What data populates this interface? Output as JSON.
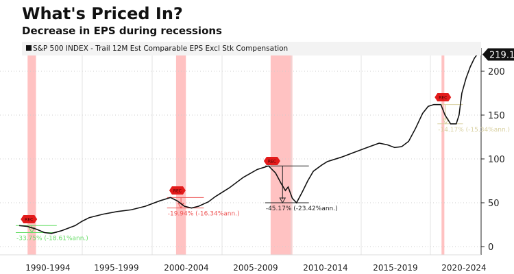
{
  "chart_data": {
    "type": "line",
    "title": "What's Priced In?",
    "subtitle": "Decrease in EPS during recessions",
    "series": [
      {
        "name": "S&P 500 INDEX - Trail 12M Est Comparable EPS Excl Stk Compensation",
        "color": "#111111",
        "points": [
          [
            1990.0,
            24
          ],
          [
            1990.6,
            23
          ],
          [
            1991.2,
            20
          ],
          [
            1991.8,
            16
          ],
          [
            1992.3,
            15
          ],
          [
            1993,
            18
          ],
          [
            1994,
            24
          ],
          [
            1994.5,
            29
          ],
          [
            1995,
            33
          ],
          [
            1996,
            37
          ],
          [
            1997,
            40
          ],
          [
            1998,
            42
          ],
          [
            1999,
            46
          ],
          [
            2000,
            52
          ],
          [
            2000.8,
            56
          ],
          [
            2001.3,
            52
          ],
          [
            2001.8,
            46
          ],
          [
            2002.3,
            44
          ],
          [
            2002.8,
            46
          ],
          [
            2003.5,
            51
          ],
          [
            2004,
            57
          ],
          [
            2005,
            67
          ],
          [
            2006,
            79
          ],
          [
            2007,
            88
          ],
          [
            2007.8,
            92
          ],
          [
            2008.3,
            84
          ],
          [
            2008.7,
            72
          ],
          [
            2009,
            64
          ],
          [
            2009.2,
            68
          ],
          [
            2009.5,
            55
          ],
          [
            2009.8,
            50
          ],
          [
            2010.2,
            62
          ],
          [
            2010.6,
            75
          ],
          [
            2011,
            86
          ],
          [
            2011.6,
            93
          ],
          [
            2012,
            97
          ],
          [
            2013,
            102
          ],
          [
            2014,
            108
          ],
          [
            2015,
            114
          ],
          [
            2015.7,
            118
          ],
          [
            2016.3,
            116
          ],
          [
            2016.8,
            113
          ],
          [
            2017.3,
            114
          ],
          [
            2017.8,
            120
          ],
          [
            2018.3,
            135
          ],
          [
            2018.8,
            152
          ],
          [
            2019.2,
            160
          ],
          [
            2019.6,
            162
          ],
          [
            2020.1,
            162
          ],
          [
            2020.4,
            150
          ],
          [
            2020.8,
            140
          ],
          [
            2021.2,
            140
          ],
          [
            2021.4,
            150
          ],
          [
            2021.6,
            175
          ],
          [
            2021.9,
            192
          ],
          [
            2022.2,
            205
          ],
          [
            2022.5,
            215
          ],
          [
            2022.7,
            219.1
          ]
        ]
      }
    ],
    "last_value_label": "219.1",
    "y_ticks": [
      0,
      50,
      100,
      150,
      200
    ],
    "ylim": [
      -5,
      230
    ],
    "xlim": [
      1988.6,
      2022.9
    ],
    "x_tick_labels": [
      "1990-1994",
      "1995-1999",
      "2000-2004",
      "2005-2009",
      "2010-2014",
      "2015-2019",
      "2020-2024"
    ],
    "recessions": [
      [
        1990.6,
        1991.2
      ],
      [
        2001.2,
        2001.9
      ],
      [
        2007.95,
        2009.5
      ],
      [
        2020.15,
        2020.35
      ]
    ],
    "recession_color": "#ffb3b3",
    "recession_marker": "REC",
    "annotations": [
      {
        "text": "-33.75% (-18.61%ann.)",
        "color": "#66dd66",
        "peak": [
          1990.0,
          24
        ],
        "trough": [
          1991.8,
          16
        ]
      },
      {
        "text": "-19.94% (-16.34%ann.)",
        "color": "#ee5555",
        "peak": [
          2000.8,
          56
        ],
        "trough": [
          2002.3,
          44
        ]
      },
      {
        "text": "-45.17% (-23.42%ann.)",
        "color": "#222222",
        "peak": [
          2007.8,
          92
        ],
        "trough": [
          2009.8,
          50
        ]
      },
      {
        "text": "-14.17% (-15.34%ann.)",
        "color": "#d8d0a0",
        "peak": [
          2020.1,
          162
        ],
        "trough": [
          2020.8,
          140
        ]
      }
    ],
    "grid": true,
    "legend": "top-left"
  }
}
